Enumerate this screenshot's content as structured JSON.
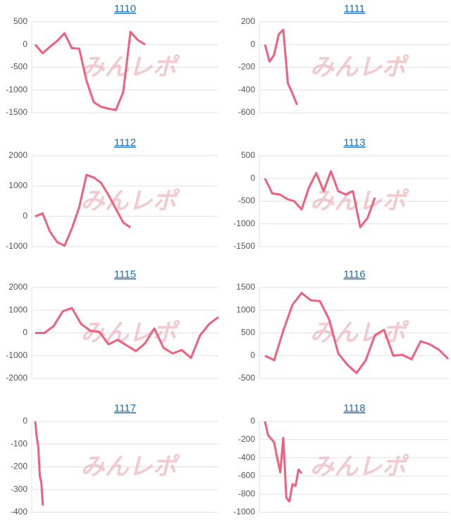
{
  "chart_data": [
    {
      "type": "line",
      "title": "1110",
      "watermark": "みんレポ",
      "color": "#f0607e",
      "xlim": [
        0,
        25
      ],
      "ylim": [
        -1500,
        500
      ],
      "yticks": [
        500,
        0,
        -500,
        -1000,
        -1500
      ],
      "grid": true,
      "values": [
        0,
        -190,
        -50,
        80,
        250,
        -80,
        -90,
        -800,
        -1270,
        -1370,
        -1410,
        -1440,
        -1050,
        280,
        100,
        0
      ]
    },
    {
      "type": "line",
      "title": "1111",
      "watermark": "みんレポ",
      "color": "#f0607e",
      "xlim": [
        0,
        40
      ],
      "ylim": [
        -600,
        200
      ],
      "yticks": [
        200,
        0,
        -200,
        -400,
        -600
      ],
      "grid": true,
      "values": [
        0,
        -150,
        -90,
        90,
        130,
        -340,
        -430,
        -530
      ]
    },
    {
      "type": "line",
      "title": "1112",
      "watermark": "みんレポ",
      "color": "#f0607e",
      "xlim": [
        0,
        25
      ],
      "ylim": [
        -1000,
        2000
      ],
      "yticks": [
        2000,
        1000,
        0,
        -1000
      ],
      "grid": true,
      "values": [
        0,
        100,
        -500,
        -850,
        -970,
        -400,
        300,
        1370,
        1280,
        1100,
        700,
        250,
        -200,
        -370
      ]
    },
    {
      "type": "line",
      "title": "1113",
      "watermark": "みんレポ",
      "color": "#f0607e",
      "xlim": [
        0,
        25
      ],
      "ylim": [
        -1500,
        500
      ],
      "yticks": [
        500,
        0,
        -500,
        -1000,
        -1500
      ],
      "grid": true,
      "values": [
        0,
        -330,
        -350,
        -450,
        -500,
        -680,
        -200,
        120,
        -280,
        160,
        -280,
        -350,
        -280,
        -1070,
        -870,
        -420
      ]
    },
    {
      "type": "line",
      "title": "1115",
      "watermark": "みんレポ",
      "color": "#f0607e",
      "xlim": [
        0,
        20
      ],
      "ylim": [
        -2000,
        2000
      ],
      "yticks": [
        2000,
        1000,
        0,
        -1000,
        -2000
      ],
      "grid": true,
      "values": [
        0,
        0,
        300,
        950,
        1100,
        400,
        100,
        50,
        -500,
        -300,
        -550,
        -800,
        -450,
        200,
        -650,
        -900,
        -750,
        -1100,
        -100,
        400,
        700
      ]
    },
    {
      "type": "line",
      "title": "1116",
      "watermark": "みんレポ",
      "color": "#f0607e",
      "xlim": [
        0,
        20
      ],
      "ylim": [
        -500,
        1500
      ],
      "yticks": [
        1500,
        1000,
        500,
        0,
        -500
      ],
      "grid": true,
      "values": [
        0,
        -100,
        550,
        1120,
        1380,
        1220,
        1200,
        800,
        50,
        -200,
        -380,
        -100,
        450,
        570,
        0,
        20,
        -80,
        320,
        250,
        130,
        -70
      ]
    },
    {
      "type": "line",
      "title": "1117",
      "watermark": "みんレポ",
      "color": "#f0607e",
      "xlim": [
        0,
        120
      ],
      "ylim": [
        -400,
        0
      ],
      "yticks": [
        0,
        -100,
        -200,
        -300,
        -400
      ],
      "grid": true,
      "values": [
        0,
        -70,
        -110,
        -240,
        -270,
        -370
      ]
    },
    {
      "type": "line",
      "title": "1118",
      "watermark": "みんレポ",
      "color": "#f0607e",
      "xlim": [
        0,
        60
      ],
      "ylim": [
        -1000,
        0
      ],
      "yticks": [
        0,
        -200,
        -400,
        -600,
        -800,
        -1000
      ],
      "grid": true,
      "values": [
        0,
        -150,
        -190,
        -230,
        -400,
        -560,
        -180,
        -840,
        -880,
        -690,
        -710,
        -530,
        -570
      ]
    }
  ]
}
